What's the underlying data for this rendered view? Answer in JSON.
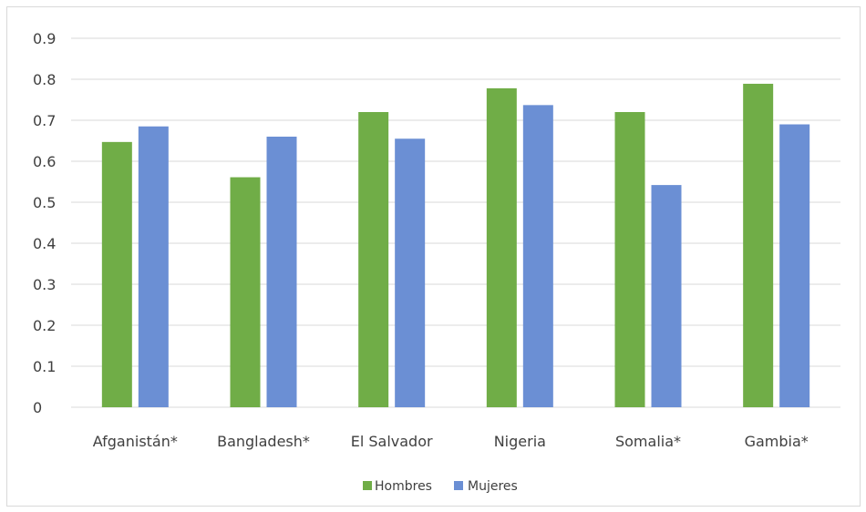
{
  "chart_data": {
    "type": "bar",
    "categories": [
      "Afganistán*",
      "Bangladesh*",
      "El Salvador",
      "Nigeria",
      "Somalia*",
      "Gambia*"
    ],
    "series": [
      {
        "name": "Hombres",
        "color": "#70ad47",
        "values": [
          0.647,
          0.561,
          0.72,
          0.778,
          0.72,
          0.789
        ]
      },
      {
        "name": "Mujeres",
        "color": "#6b8fd4",
        "values": [
          0.685,
          0.66,
          0.655,
          0.737,
          0.542,
          0.69
        ]
      }
    ],
    "yticks": [
      "0",
      "0.1",
      "0.2",
      "0.3",
      "0.4",
      "0.5",
      "0.6",
      "0.7",
      "0.8",
      "0.9"
    ],
    "ylim": [
      0,
      0.9
    ],
    "grid": true,
    "legend_position": "bottom",
    "gridline_color": "#d9d9d9"
  }
}
